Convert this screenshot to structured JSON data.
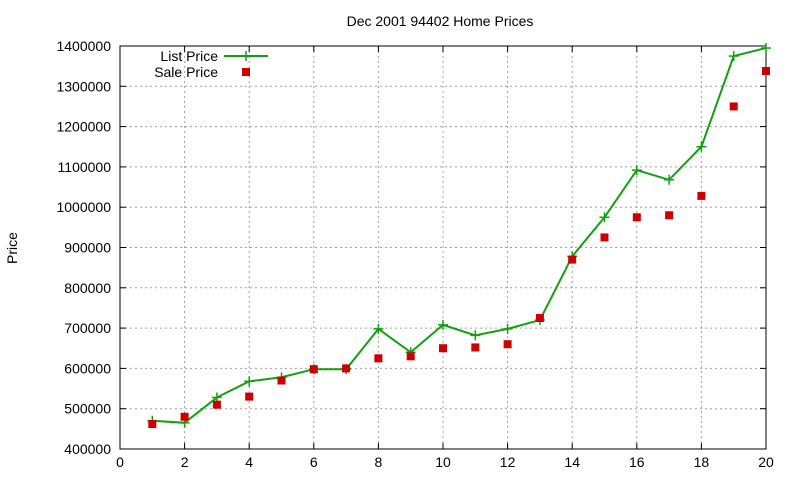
{
  "chart_data": {
    "type": "line",
    "title": "Dec 2001 94402 Home Prices",
    "xlabel": "",
    "ylabel": "Price",
    "xlim": [
      0,
      20
    ],
    "ylim": [
      400000,
      1400000
    ],
    "xticks": [
      0,
      2,
      4,
      6,
      8,
      10,
      12,
      14,
      16,
      18,
      20
    ],
    "yticks": [
      400000,
      500000,
      600000,
      700000,
      800000,
      900000,
      1000000,
      1100000,
      1200000,
      1300000,
      1400000
    ],
    "grid": true,
    "legend": "top-left",
    "series": [
      {
        "name": "List Price",
        "style": "line+points",
        "color": "#11a011",
        "x": [
          1,
          2,
          3,
          4,
          5,
          6,
          7,
          8,
          9,
          10,
          11,
          12,
          13,
          14,
          15,
          16,
          17,
          18,
          19,
          20
        ],
        "values": [
          470000,
          465000,
          528000,
          568000,
          578000,
          598000,
          598000,
          698000,
          640000,
          708000,
          682000,
          698000,
          720000,
          878000,
          975000,
          1092000,
          1068000,
          1150000,
          1375000,
          1395000
        ]
      },
      {
        "name": "Sale Price",
        "style": "points",
        "color": "#cc0000",
        "x": [
          1,
          2,
          3,
          4,
          5,
          6,
          7,
          8,
          9,
          10,
          11,
          12,
          13,
          14,
          15,
          16,
          17,
          18,
          19,
          20
        ],
        "values": [
          462000,
          480000,
          510000,
          530000,
          570000,
          598000,
          600000,
          625000,
          630000,
          650000,
          652000,
          660000,
          725000,
          870000,
          925000,
          975000,
          980000,
          1028000,
          1250000,
          1338000
        ]
      }
    ]
  }
}
